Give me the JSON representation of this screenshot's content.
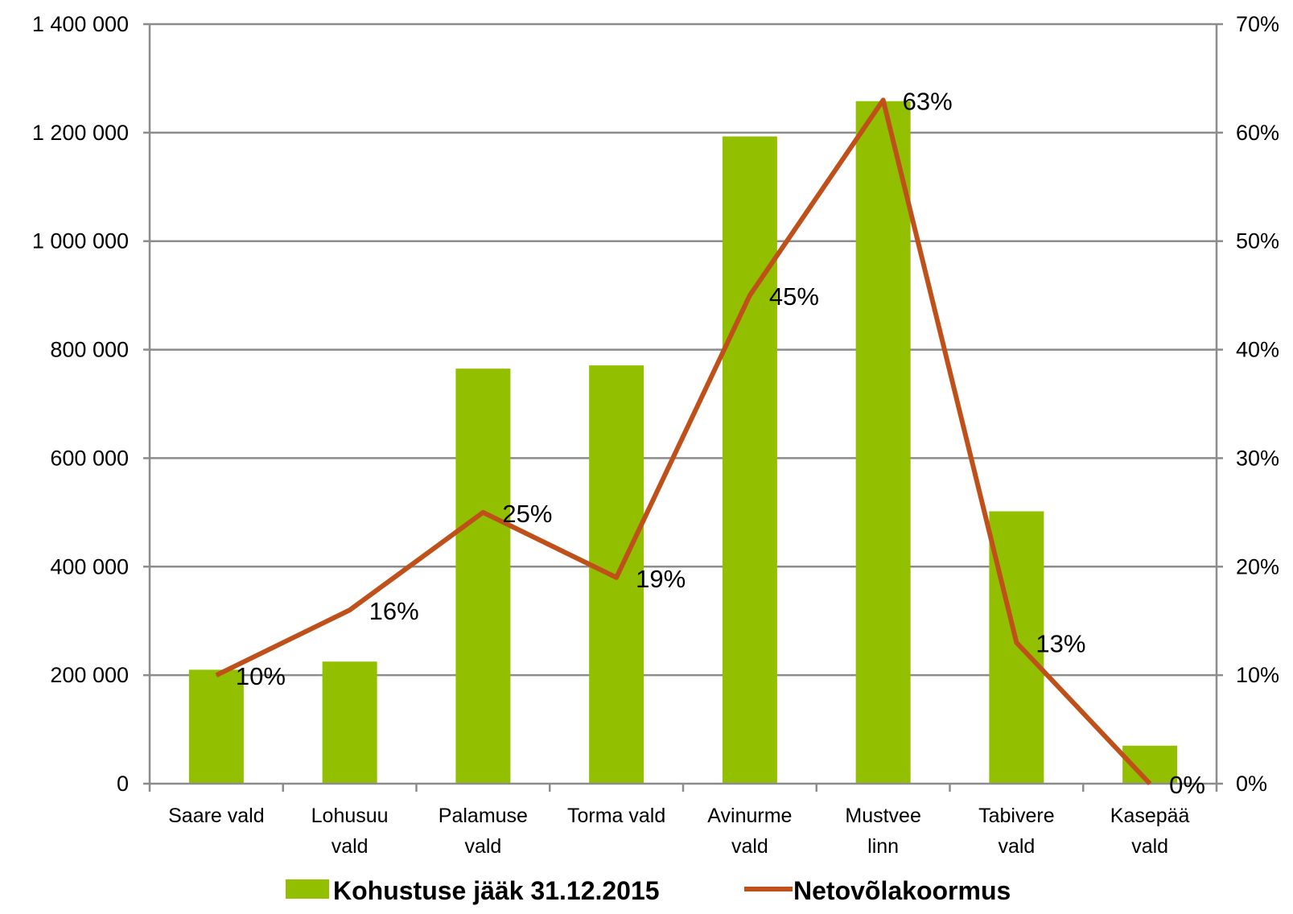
{
  "chart_data": {
    "type": "bar",
    "categories": [
      [
        "Saare vald"
      ],
      [
        "Lohusuu",
        "vald"
      ],
      [
        "Palamuse",
        "vald"
      ],
      [
        "Torma vald"
      ],
      [
        "Avinurme",
        "vald"
      ],
      [
        "Mustvee",
        "linn"
      ],
      [
        "Tabivere",
        "vald"
      ],
      [
        "Kasepää",
        "vald"
      ]
    ],
    "series": [
      {
        "name": "Kohustuse jääk 31.12.2015",
        "type": "bar",
        "axis": "left",
        "color": "#92c000",
        "values": [
          210000,
          225000,
          765000,
          771000,
          1193000,
          1258000,
          502000,
          70000
        ]
      },
      {
        "name": "Netovõlakoormus",
        "type": "line",
        "axis": "right",
        "color": "#c0501a",
        "values": [
          0.1,
          0.16,
          0.25,
          0.19,
          0.45,
          0.63,
          0.13,
          0.0
        ],
        "labels": [
          "10%",
          "16%",
          "25%",
          "19%",
          "45%",
          "63%",
          "13%",
          "0%"
        ]
      }
    ],
    "y_left": {
      "min": 0,
      "max": 1400000,
      "step": 200000,
      "tick_labels": [
        "0",
        "200 000",
        "400 000",
        "600 000",
        "800 000",
        "1 000 000",
        "1 200 000",
        "1 400 000"
      ]
    },
    "y_right": {
      "min": 0,
      "max": 0.7,
      "step": 0.1,
      "tick_labels": [
        "0%",
        "10%",
        "20%",
        "30%",
        "40%",
        "50%",
        "60%",
        "70%"
      ]
    },
    "grid": true,
    "legend": "bottom"
  }
}
